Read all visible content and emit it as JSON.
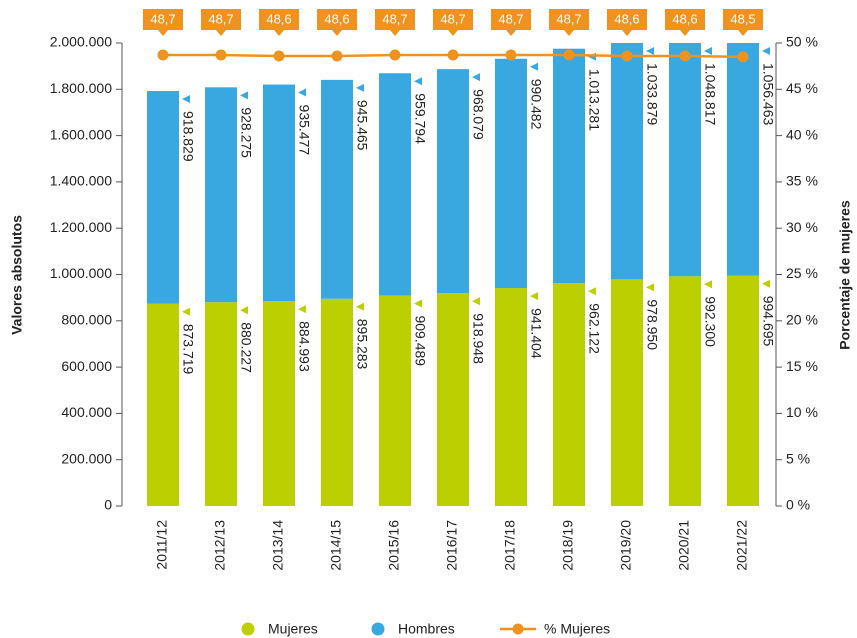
{
  "chart_data": {
    "type": "bar",
    "stacked": true,
    "y_label": "Valores absolutos",
    "y2_label": "Porcentaje de mujeres",
    "categories": [
      "2011/12",
      "2012/13",
      "2013/14",
      "2014/15",
      "2015/16",
      "2016/17",
      "2017/18",
      "2018/19",
      "2019/20",
      "2020/21",
      "2021/22"
    ],
    "series": [
      {
        "name": "Mujeres",
        "color": "#bccf00",
        "values": [
          873719,
          880227,
          884993,
          895283,
          909489,
          918948,
          941404,
          962122,
          978950,
          992300,
          994695
        ],
        "value_labels": [
          "873.719",
          "880.227",
          "884.993",
          "895.283",
          "909.489",
          "918.948",
          "941.404",
          "962.122",
          "978.950",
          "992.300",
          "994.695"
        ]
      },
      {
        "name": "Hombres",
        "color": "#3aa8e0",
        "values": [
          918829,
          928275,
          935477,
          945465,
          959794,
          968079,
          990482,
          1013281,
          1033879,
          1048817,
          1056463
        ],
        "value_labels": [
          "918.829",
          "928.275",
          "935.477",
          "945.465",
          "959.794",
          "968.079",
          "990.482",
          "1.013.281",
          "1.033.879",
          "1.048.817",
          "1.056.463"
        ]
      },
      {
        "name": "% Mujeres",
        "color": "#f0921e",
        "type": "line",
        "axis": "y2",
        "values": [
          48.7,
          48.7,
          48.6,
          48.6,
          48.7,
          48.7,
          48.7,
          48.7,
          48.6,
          48.6,
          48.5
        ],
        "value_labels": [
          "48,7",
          "48,7",
          "48,6",
          "48,6",
          "48,7",
          "48,7",
          "48,7",
          "48,7",
          "48,6",
          "48,6",
          "48,5"
        ]
      }
    ],
    "ylim": [
      0,
      2000000
    ],
    "yticks": [
      0,
      {
        "value": 200000,
        "label": "200.000"
      },
      {
        "value": 400000,
        "label": "400.000"
      },
      {
        "value": 600000,
        "label": "600.000"
      },
      {
        "value": 800000,
        "label": "800.000"
      },
      {
        "value": 1000000,
        "label": "1.000.000"
      },
      {
        "value": 1200000,
        "label": "1.200.000"
      },
      {
        "value": 1400000,
        "label": "1.400.000"
      },
      {
        "value": 1600000,
        "label": "1.600.000"
      },
      {
        "value": 1800000,
        "label": "1.800.000"
      },
      {
        "value": 2000000,
        "label": "2.000.000"
      }
    ],
    "y2lim": [
      0,
      50
    ],
    "y2ticks": [
      {
        "value": 0,
        "label": "0 %"
      },
      {
        "value": 5,
        "label": "5 %"
      },
      {
        "value": 10,
        "label": "10 %"
      },
      {
        "value": 15,
        "label": "15 %"
      },
      {
        "value": 20,
        "label": "20 %"
      },
      {
        "value": 25,
        "label": "25 %"
      },
      {
        "value": 30,
        "label": "30 %"
      },
      {
        "value": 35,
        "label": "35 %"
      },
      {
        "value": 40,
        "label": "40 %"
      },
      {
        "value": 45,
        "label": "45 %"
      },
      {
        "value": 50,
        "label": "50 %"
      }
    ],
    "legend": "bottom"
  }
}
